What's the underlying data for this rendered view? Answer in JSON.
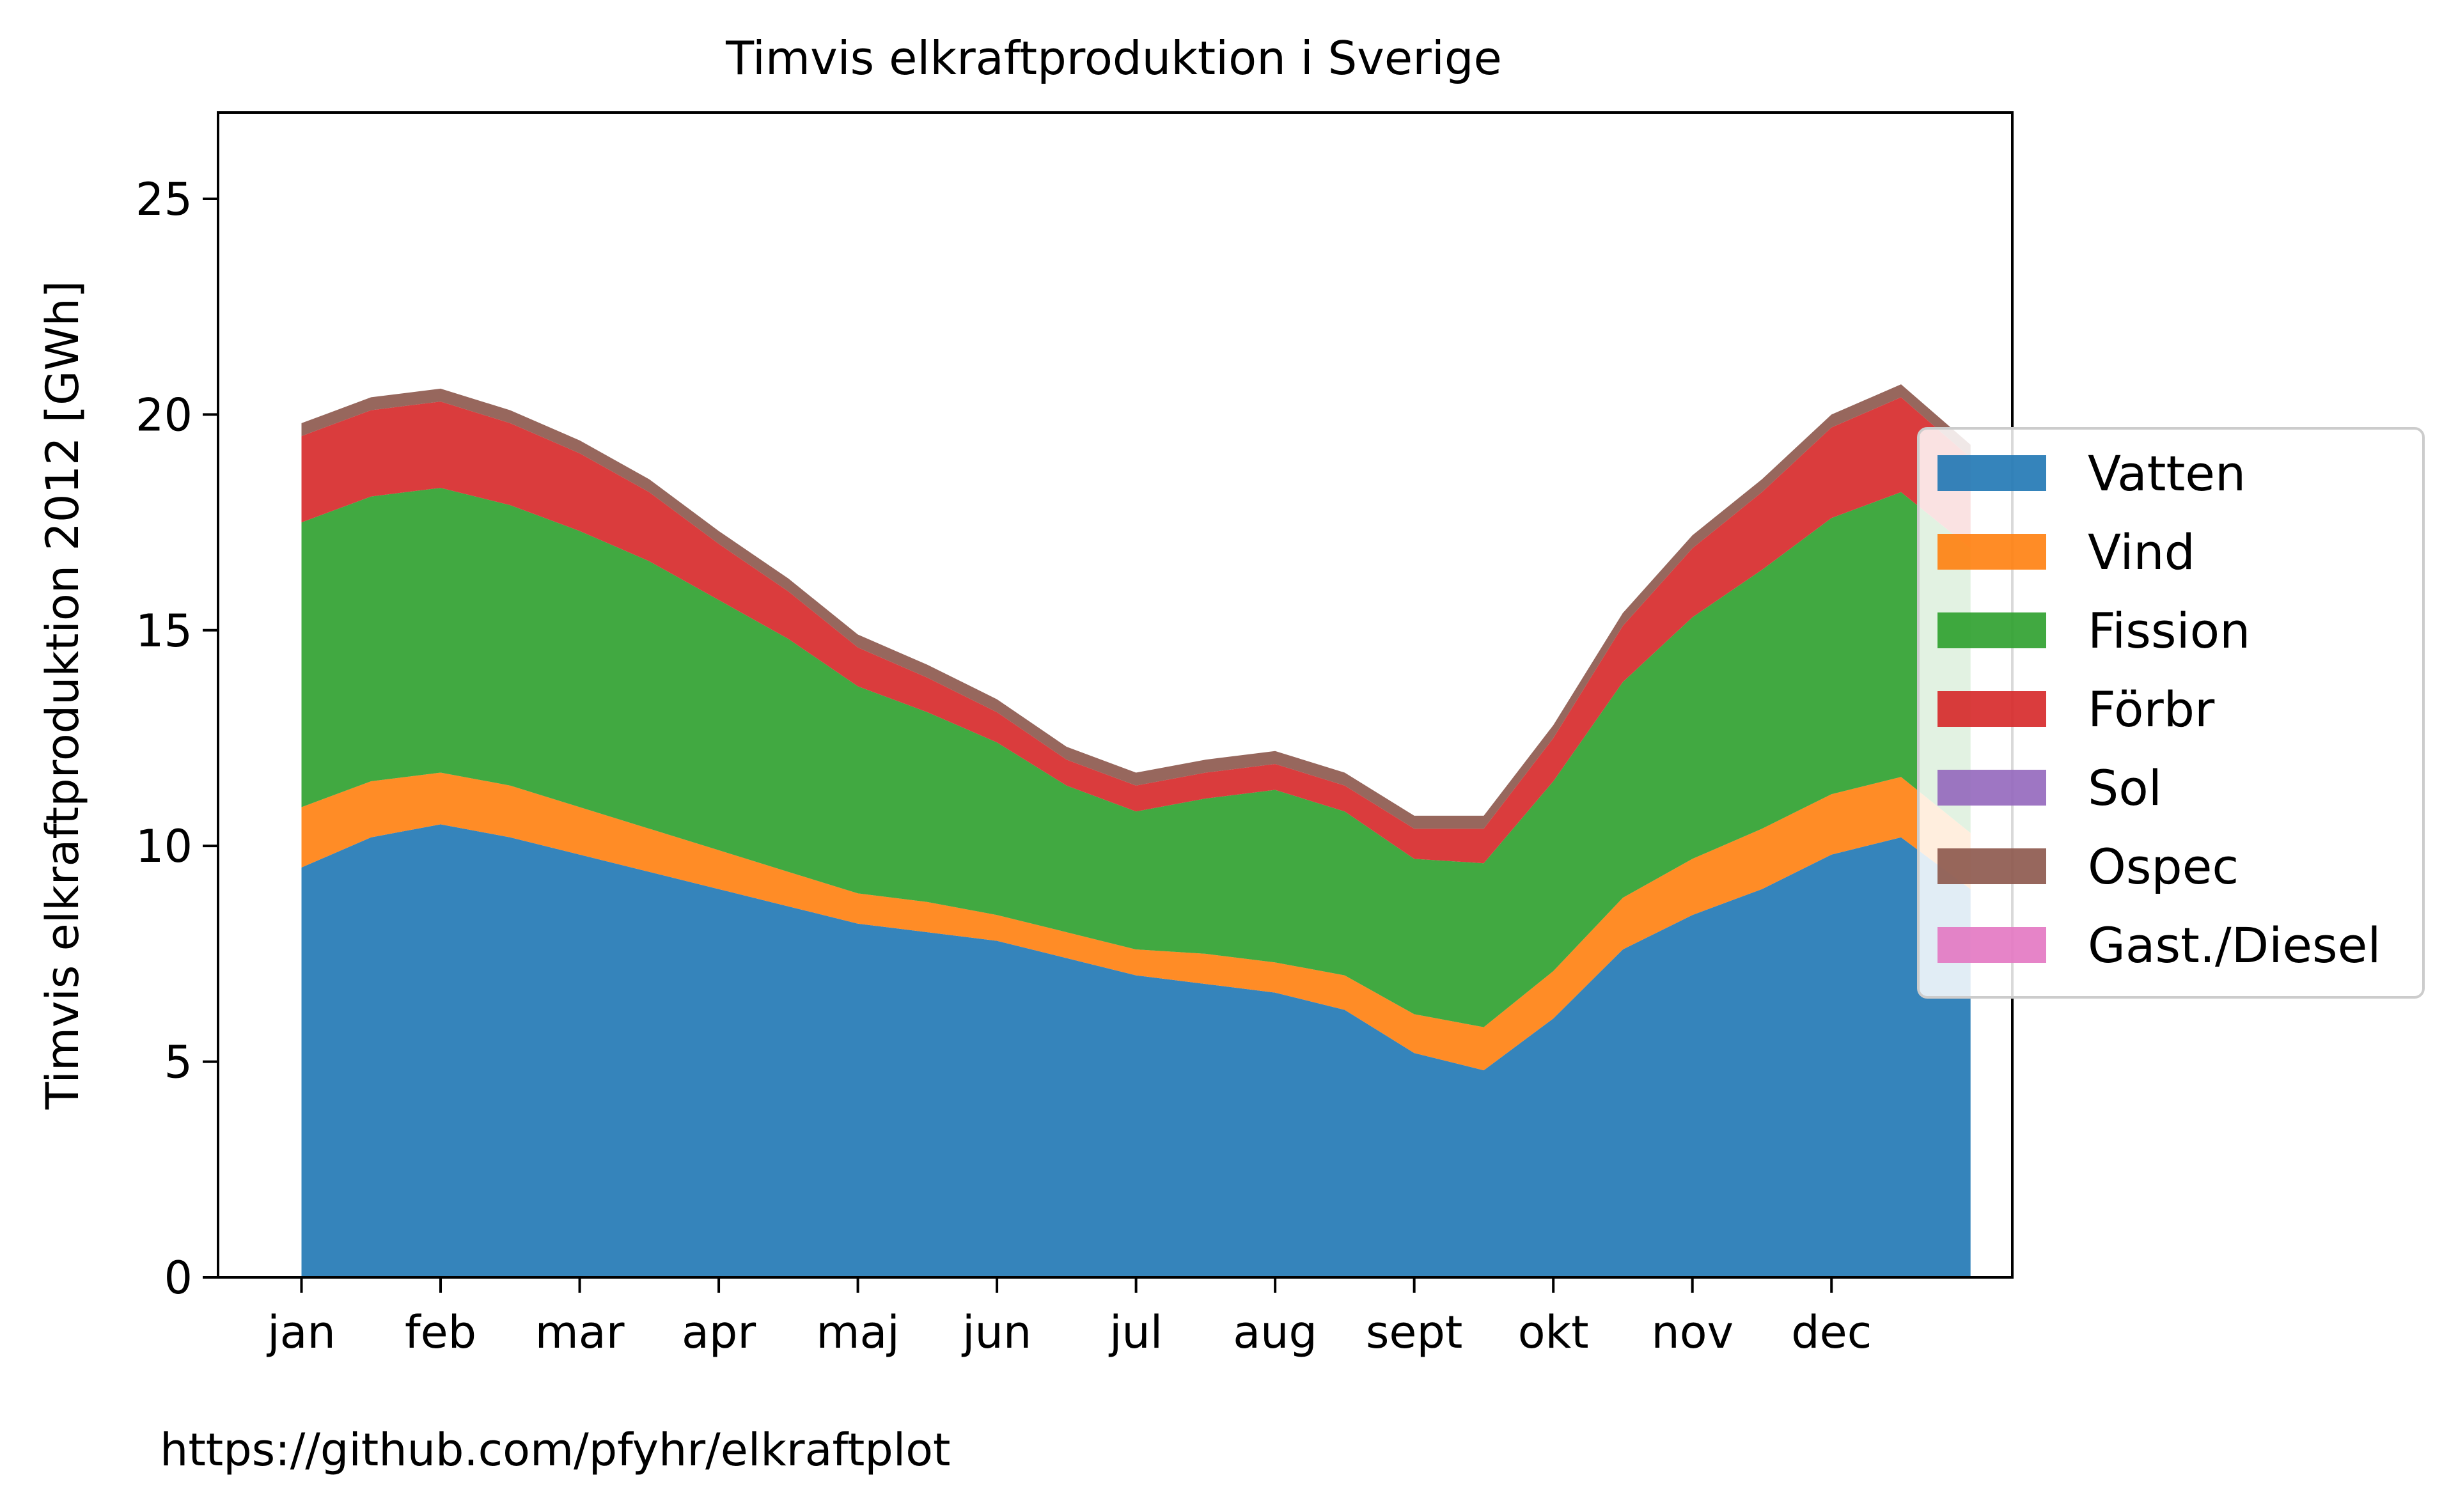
{
  "chart_data": {
    "type": "area",
    "stacked": true,
    "title": "Timvis elkraftproduktion i Sverige",
    "xlabel": "",
    "ylabel": "Timvis elkraftproduktion 2012 [GWh]",
    "x_unit": "months of 2012",
    "xlim": [
      -0.6,
      12.3
    ],
    "ylim": [
      0,
      27
    ],
    "yticks": [
      0,
      5,
      10,
      15,
      20,
      25
    ],
    "x_tick_labels": [
      "jan",
      "feb",
      "mar",
      "apr",
      "maj",
      "jun",
      "jul",
      "aug",
      "sept",
      "okt",
      "nov",
      "dec"
    ],
    "legend_position": "right, outside plot area",
    "grid": false,
    "source": "https://github.com/pfyhr/elkraftplot",
    "x": [
      0,
      0.5,
      1,
      1.5,
      2,
      2.5,
      3,
      3.5,
      4,
      4.5,
      5,
      5.5,
      6,
      6.5,
      7,
      7.5,
      8,
      8.5,
      9,
      9.5,
      10,
      10.5,
      11,
      11.5,
      12
    ],
    "series": [
      {
        "name": "Vatten",
        "color": "#1f77b4",
        "values": [
          9.5,
          10.2,
          10.5,
          10.2,
          9.8,
          9.4,
          9.0,
          8.6,
          8.2,
          8.0,
          7.8,
          7.4,
          7.0,
          6.8,
          6.6,
          6.2,
          5.2,
          4.8,
          6.0,
          7.6,
          8.4,
          9.0,
          9.8,
          10.2,
          9.0
        ]
      },
      {
        "name": "Vind",
        "color": "#ff7f0e",
        "values": [
          1.4,
          1.3,
          1.2,
          1.2,
          1.1,
          1.0,
          0.9,
          0.8,
          0.7,
          0.7,
          0.6,
          0.6,
          0.6,
          0.7,
          0.7,
          0.8,
          0.9,
          1.0,
          1.1,
          1.2,
          1.3,
          1.4,
          1.4,
          1.4,
          1.3
        ]
      },
      {
        "name": "Fission",
        "color": "#2ca02c",
        "values": [
          6.6,
          6.6,
          6.6,
          6.5,
          6.4,
          6.2,
          5.8,
          5.4,
          4.8,
          4.4,
          4.0,
          3.4,
          3.2,
          3.6,
          4.0,
          3.8,
          3.6,
          3.8,
          4.4,
          5.0,
          5.6,
          6.0,
          6.4,
          6.6,
          6.6
        ]
      },
      {
        "name": "Förbr",
        "color": "#d62728",
        "values": [
          2.0,
          2.0,
          2.0,
          1.9,
          1.8,
          1.6,
          1.3,
          1.1,
          0.9,
          0.8,
          0.7,
          0.6,
          0.6,
          0.6,
          0.6,
          0.6,
          0.7,
          0.8,
          1.0,
          1.3,
          1.6,
          1.8,
          2.1,
          2.2,
          2.1
        ]
      },
      {
        "name": "Sol",
        "color": "#9467bd",
        "values": [
          0.0,
          0.0,
          0.0,
          0.0,
          0.0,
          0.0,
          0.0,
          0.0,
          0.0,
          0.0,
          0.0,
          0.0,
          0.0,
          0.0,
          0.0,
          0.0,
          0.0,
          0.0,
          0.0,
          0.0,
          0.0,
          0.0,
          0.0,
          0.0,
          0.0
        ]
      },
      {
        "name": "Ospec",
        "color": "#8c564b",
        "values": [
          0.3,
          0.3,
          0.3,
          0.3,
          0.3,
          0.3,
          0.3,
          0.3,
          0.3,
          0.3,
          0.3,
          0.3,
          0.3,
          0.3,
          0.3,
          0.3,
          0.3,
          0.3,
          0.3,
          0.3,
          0.3,
          0.3,
          0.3,
          0.3,
          0.3
        ]
      },
      {
        "name": "Gast./Diesel",
        "color": "#e377c2",
        "values": [
          0.0,
          0.0,
          0.0,
          0.0,
          0.0,
          0.0,
          0.0,
          0.0,
          0.0,
          0.0,
          0.0,
          0.0,
          0.0,
          0.0,
          0.0,
          0.0,
          0.0,
          0.0,
          0.0,
          0.0,
          0.0,
          0.0,
          0.0,
          0.0,
          0.0
        ]
      }
    ]
  }
}
